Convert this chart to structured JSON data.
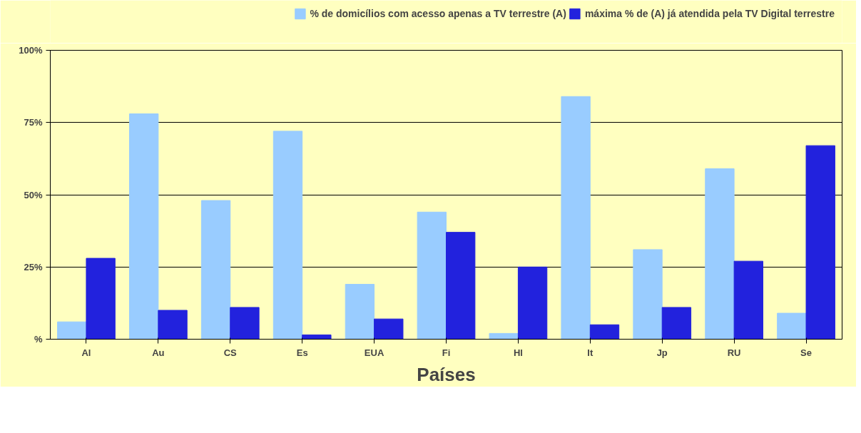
{
  "chart_data": {
    "type": "bar",
    "categories": [
      "Al",
      "Au",
      "CS",
      "Es",
      "EUA",
      "Fi",
      "Hl",
      "It",
      "Jp",
      "RU",
      "Se"
    ],
    "series": [
      {
        "name": "% de domicílios com acesso apenas a TV terrestre (A)",
        "color": "#99ccff",
        "values": [
          6,
          78,
          48,
          72,
          19,
          44,
          2,
          84,
          31,
          59,
          9
        ]
      },
      {
        "name": "máxima % de (A) já atendida pela TV Digital terrestre",
        "color": "#2222dd",
        "values": [
          28,
          10,
          11,
          1.5,
          7,
          37,
          25,
          5,
          11,
          27,
          67
        ]
      }
    ],
    "xlabel": "Países",
    "ylim": [
      0,
      100
    ],
    "yticks": [
      {
        "value": 0,
        "label": "%"
      },
      {
        "value": 25,
        "label": "25%"
      },
      {
        "value": 50,
        "label": "50%"
      },
      {
        "value": 75,
        "label": "75%"
      },
      {
        "value": 100,
        "label": "100%"
      }
    ],
    "grid": "y",
    "legend": "top right"
  }
}
